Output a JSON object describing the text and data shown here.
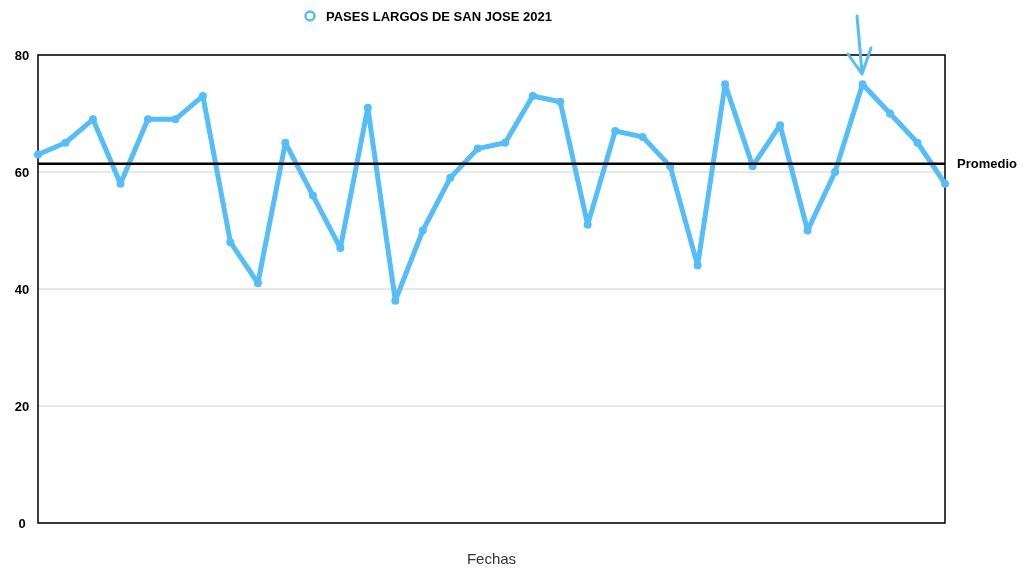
{
  "chart_data": {
    "type": "line",
    "xlabel": "Fechas",
    "categories": [
      null,
      null,
      null,
      null,
      null,
      null,
      null,
      null,
      null,
      null,
      null,
      null,
      null,
      null,
      null,
      null,
      null,
      null,
      null,
      null,
      null,
      null,
      null,
      null,
      null,
      null,
      null,
      null,
      null,
      null,
      null,
      null,
      null,
      null
    ],
    "series": [
      {
        "name": "PASES LARGOS DE SAN JOSE 2021",
        "color": "#55bdf8",
        "values": [
          63,
          65,
          69,
          58,
          69,
          69,
          73,
          48,
          41,
          65,
          56,
          47,
          71,
          38,
          50,
          59,
          64,
          65,
          73,
          72,
          51,
          67,
          66,
          61,
          44,
          75,
          61,
          68,
          50,
          60,
          75,
          70,
          65,
          58
        ]
      }
    ],
    "ylim": [
      0,
      80
    ],
    "yticks": [
      0,
      20,
      40,
      60,
      80
    ],
    "grid": "y",
    "legend": "top",
    "marker": "circle",
    "line_style": "solid",
    "ref_lines": [
      {
        "axis": "y",
        "value": 61.4,
        "label": "Promedio",
        "color": "#000000"
      }
    ]
  }
}
